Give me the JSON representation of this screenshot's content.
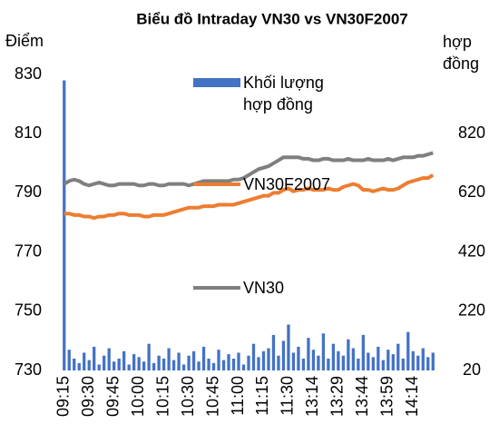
{
  "chart_data": {
    "type": "combo",
    "title": "Biểu đồ Intraday VN30 vs VN30F2007",
    "y_label": "Điểm",
    "y2_label": "hợp đồng",
    "categories": [
      "09:15",
      null,
      null,
      null,
      null,
      "09:30",
      null,
      null,
      null,
      null,
      "09:45",
      null,
      null,
      null,
      null,
      "10:00",
      null,
      null,
      null,
      null,
      "10:15",
      null,
      null,
      null,
      null,
      "10:30",
      null,
      null,
      null,
      null,
      "10:45",
      null,
      null,
      null,
      null,
      "11:00",
      null,
      null,
      null,
      null,
      "11:15",
      null,
      null,
      null,
      null,
      "11:30",
      null,
      null,
      null,
      null,
      "13:14",
      null,
      null,
      null,
      null,
      "13:29",
      null,
      null,
      null,
      null,
      "13:44",
      null,
      null,
      null,
      null,
      "13:59",
      null,
      null,
      null,
      null,
      "14:14",
      null,
      null,
      null,
      null
    ],
    "ylim": [
      730,
      830
    ],
    "yticks": [
      730,
      750,
      770,
      790,
      810,
      830
    ],
    "y2lim": [
      20,
      1020
    ],
    "y2ticks": [
      20,
      220,
      420,
      620,
      820
    ],
    "series": [
      {
        "name": "Khối lượng hợp đồng",
        "type": "bar",
        "axis": "y2",
        "color": "#4472c4",
        "values": [
          1000,
          90,
          60,
          45,
          80,
          55,
          100,
          40,
          70,
          95,
          50,
          60,
          85,
          40,
          75,
          65,
          50,
          110,
          45,
          70,
          60,
          95,
          55,
          80,
          40,
          70,
          85,
          50,
          100,
          60,
          45,
          90,
          55,
          75,
          60,
          80,
          40,
          70,
          110,
          65,
          85,
          95,
          140,
          70,
          120,
          175,
          80,
          100,
          60,
          130,
          90,
          70,
          145,
          60,
          110,
          85,
          70,
          125,
          95,
          60,
          140,
          80,
          65,
          100,
          55,
          90,
          75,
          110,
          60,
          150,
          85,
          70,
          95,
          65,
          80
        ]
      },
      {
        "name": "VN30F2007",
        "type": "line",
        "axis": "y",
        "color": "#ed7d31",
        "values": [
          783,
          783,
          782.5,
          782.5,
          782,
          782,
          781.5,
          782,
          782,
          782.5,
          782.5,
          783,
          783,
          782.5,
          782.5,
          782.5,
          782,
          782,
          782.5,
          782.5,
          782.5,
          783,
          783.5,
          784,
          784.5,
          785,
          785,
          785,
          785.5,
          785.5,
          785.5,
          786,
          786,
          786,
          786,
          786.5,
          787,
          787.5,
          788,
          788.5,
          789,
          789,
          790,
          790,
          791,
          791.5,
          790.5,
          791,
          791,
          791.5,
          791,
          791,
          791,
          791.5,
          791,
          791,
          792,
          792.5,
          793,
          792.5,
          791,
          791,
          790.5,
          791,
          791.5,
          791,
          791,
          791.5,
          792.5,
          793.5,
          794,
          794.5,
          795,
          795,
          796
        ]
      },
      {
        "name": "VN30",
        "type": "line",
        "axis": "y",
        "color": "#7f7f7f",
        "values": [
          793,
          794,
          794.5,
          794,
          793,
          792.5,
          793,
          793.5,
          793,
          792.5,
          792.5,
          793,
          793,
          793,
          793,
          792.5,
          792.5,
          793,
          793,
          792.5,
          792.5,
          793,
          793,
          793,
          793,
          792.5,
          793,
          793.5,
          794,
          794,
          794,
          794,
          794,
          794,
          794.5,
          794.5,
          795,
          796,
          797,
          798,
          798.5,
          799,
          800,
          801,
          802,
          802,
          802,
          802,
          801.5,
          801.5,
          801,
          801,
          801.5,
          801.5,
          801,
          801,
          801,
          801.5,
          801,
          801,
          801,
          801.5,
          801,
          801,
          801,
          801.5,
          801,
          801.5,
          802,
          802,
          802,
          802.5,
          802.5,
          803,
          803.5
        ]
      }
    ]
  }
}
